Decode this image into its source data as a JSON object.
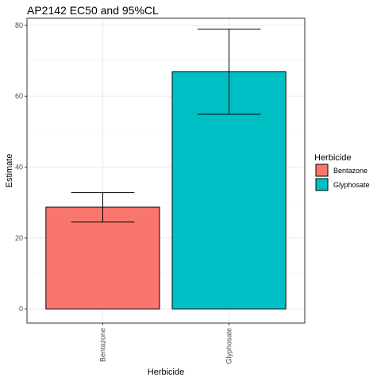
{
  "chart_data": {
    "type": "bar",
    "title": "AP2142 EC50 and 95%CL",
    "xlabel": "Herbicide",
    "ylabel": "Estimate",
    "categories": [
      "Bentazone",
      "Glyphosate"
    ],
    "values": [
      28.7,
      66.9
    ],
    "lower": [
      24.5,
      54.9
    ],
    "upper": [
      32.8,
      78.9
    ],
    "colors": [
      "#F8766D",
      "#00BFC4"
    ],
    "ylim": [
      -4,
      82
    ],
    "yticks": [
      0,
      20,
      40,
      60,
      80
    ],
    "grid": true,
    "legend": {
      "title": "Herbicide",
      "placement": "right",
      "entries": [
        "Bentazone",
        "Glyphosate"
      ]
    }
  }
}
